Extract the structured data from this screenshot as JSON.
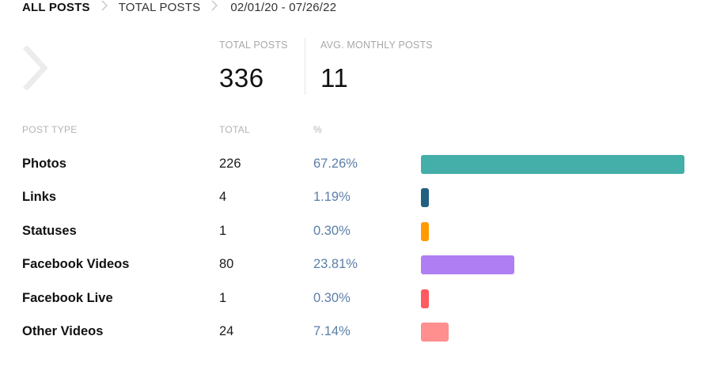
{
  "breadcrumb": {
    "items": [
      "ALL POSTS",
      "TOTAL POSTS"
    ],
    "date_range": "02/01/20 - 07/26/22"
  },
  "stats": {
    "total_posts": {
      "label": "TOTAL POSTS",
      "value": "336"
    },
    "avg_monthly_posts": {
      "label": "AVG. MONTHLY POSTS",
      "value": "11"
    }
  },
  "table": {
    "headers": {
      "type": "POST TYPE",
      "total": "TOTAL",
      "pct": "%"
    },
    "rows": [
      {
        "type": "Photos",
        "total": "226",
        "pct": "67.26%",
        "fraction": 0.6726,
        "color": "#44aea8"
      },
      {
        "type": "Links",
        "total": "4",
        "pct": "1.19%",
        "fraction": 0.0119,
        "color": "#21607f"
      },
      {
        "type": "Statuses",
        "total": "1",
        "pct": "0.30%",
        "fraction": 0.003,
        "color": "#ff9a00"
      },
      {
        "type": "Facebook Videos",
        "total": "80",
        "pct": "23.81%",
        "fraction": 0.2381,
        "color": "#b07ef3"
      },
      {
        "type": "Facebook Live",
        "total": "1",
        "pct": "0.30%",
        "fraction": 0.003,
        "color": "#ff5a60"
      },
      {
        "type": "Other Videos",
        "total": "24",
        "pct": "7.14%",
        "fraction": 0.0714,
        "color": "#ff8f8f"
      }
    ]
  },
  "icons": {
    "breadcrumb_separator": "chevron-right-icon",
    "back": "chevron-right-icon"
  }
}
